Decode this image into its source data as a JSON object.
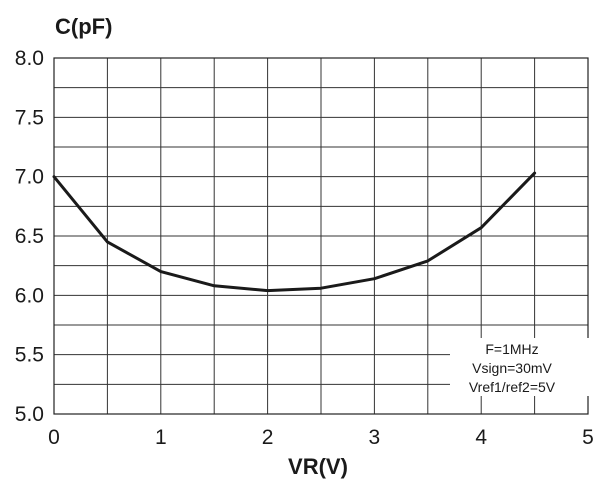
{
  "chart_data": {
    "type": "line",
    "title": "",
    "xlabel": "VR(V)",
    "ylabel": "C(pF)",
    "xlim": [
      0,
      5
    ],
    "ylim": [
      5.0,
      8.0
    ],
    "x_ticks": [
      "0",
      "1",
      "2",
      "3",
      "4",
      "5"
    ],
    "y_ticks": [
      "5.0",
      "5.5",
      "6.0",
      "6.5",
      "7.0",
      "7.5",
      "8.0"
    ],
    "grid": true,
    "series": [
      {
        "x": [
          0,
          0.5,
          1.0,
          1.5,
          2.0,
          2.5,
          3.0,
          3.5,
          4.0,
          4.5
        ],
        "y": [
          7.0,
          6.45,
          6.2,
          6.08,
          6.04,
          6.06,
          6.14,
          6.29,
          6.57,
          7.03
        ]
      }
    ],
    "annotations": [
      "F=1MHz",
      "Vsign=30mV",
      "Vref1/ref2=5V"
    ],
    "line_color": "#1a1a1a"
  }
}
